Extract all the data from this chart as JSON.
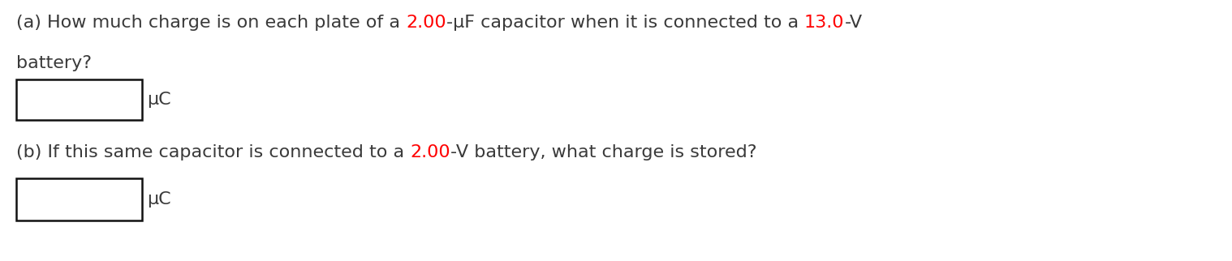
{
  "background_color": "#ffffff",
  "text_color": "#3a3a3a",
  "red_color": "#ff0000",
  "font_size": 16,
  "font_family": "DejaVu Sans",
  "line_a_part1": "(a) How much charge is on each plate of a ",
  "line_a_red1": "2.00",
  "line_a_part2": "-μF capacitor when it is connected to a ",
  "line_a_red2": "13.0",
  "line_a_part3": "-V",
  "line_a_cont": "battery?",
  "unit_a": "μC",
  "line_b_part1": "(b) If this same capacitor is connected to a ",
  "line_b_red1": "2.00",
  "line_b_part2": "-V battery, what charge is stored?",
  "unit_b": "μC",
  "fig_width": 15.18,
  "fig_height": 3.22,
  "dpi": 100
}
